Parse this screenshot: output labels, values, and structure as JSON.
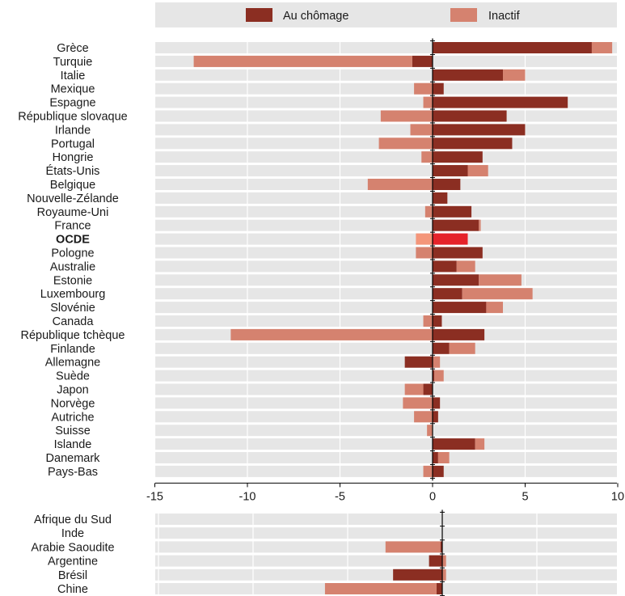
{
  "chart_data": [
    {
      "type": "bar",
      "orientation": "horizontal",
      "stacked": true,
      "legend": [
        {
          "name": "Au chômage",
          "color": "#8b2e22"
        },
        {
          "name": "Inactif",
          "color": "#d5826f"
        }
      ],
      "legend_placement": "top",
      "xlim": [
        -15,
        10
      ],
      "xticks": [
        "-15",
        "-10",
        "-5",
        "0",
        "5",
        "10"
      ],
      "grid": true,
      "highlight_category": "OCDE",
      "highlight_colors": {
        "Au chômage": "#e5232a",
        "Inactif": "#f4967a"
      },
      "categories": [
        "Grèce",
        "Turquie",
        "Italie",
        "Mexique",
        "Espagne",
        "République slovaque",
        "Irlande",
        "Portugal",
        "Hongrie",
        "États-Unis",
        "Belgique",
        "Nouvelle-Zélande",
        "Royaume-Uni",
        "France",
        "OCDE",
        "Pologne",
        "Australie",
        "Estonie",
        "Luxembourg",
        "Slovénie",
        "Canada",
        "République tchèque",
        "Finlande",
        "Allemagne",
        "Suède",
        "Japon",
        "Norvège",
        "Autriche",
        "Suisse",
        "Islande",
        "Danemark",
        "Pays-Bas"
      ],
      "series": [
        {
          "name": "Au chômage",
          "values": [
            8.6,
            -1.1,
            3.8,
            0.6,
            7.3,
            4.0,
            5.0,
            4.3,
            2.7,
            1.9,
            1.5,
            0.8,
            2.1,
            2.5,
            1.9,
            2.7,
            1.3,
            2.5,
            1.6,
            2.9,
            0.5,
            2.8,
            0.9,
            -1.5,
            0.1,
            -0.5,
            0.4,
            0.3,
            0.0,
            2.3,
            0.3,
            0.6
          ]
        },
        {
          "name": "Inactif",
          "values": [
            1.1,
            -11.8,
            1.2,
            -1.0,
            -0.5,
            -2.8,
            -1.2,
            -2.9,
            -0.6,
            1.1,
            -3.5,
            0.0,
            -0.4,
            0.1,
            -0.9,
            -0.9,
            1.0,
            2.3,
            3.8,
            0.9,
            -0.5,
            -10.9,
            1.4,
            0.4,
            0.5,
            -1.0,
            -1.6,
            -1.0,
            -0.3,
            0.5,
            0.6,
            -0.5
          ]
        }
      ]
    },
    {
      "type": "bar",
      "orientation": "horizontal",
      "stacked": true,
      "xlim": [
        -15,
        10
      ],
      "grid": true,
      "categories": [
        "Afrique du Sud",
        "Inde",
        "Arabie Saoudite",
        "Argentine",
        "Brésil",
        "Chine"
      ],
      "series": [
        {
          "name": "Au chômage",
          "values": [
            0.0,
            0.0,
            -0.1,
            -0.7,
            -2.6,
            -0.3
          ]
        },
        {
          "name": "Inactif",
          "values": [
            0.0,
            0.0,
            -2.9,
            0.2,
            0.2,
            -5.9
          ]
        }
      ]
    }
  ]
}
